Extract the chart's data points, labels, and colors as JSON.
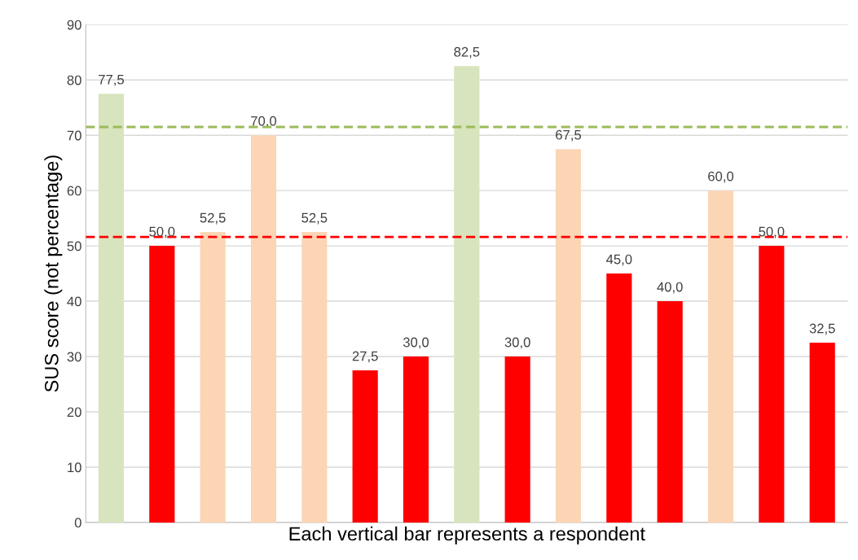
{
  "chart_data": {
    "type": "bar",
    "xlabel": "Each vertical bar represents a respondent",
    "ylabel": "SUS score (not percentage)",
    "categories": [
      null,
      null,
      null,
      null,
      null,
      null,
      null,
      null,
      null,
      null,
      null,
      null,
      null,
      null,
      null
    ],
    "values": [
      77.5,
      50,
      52.5,
      70,
      52.5,
      27.5,
      30,
      82.5,
      30,
      67.5,
      45,
      40,
      60,
      50,
      32.5
    ],
    "colors": [
      "#d7e4bd",
      "#ff0000",
      "#fcd5b5",
      "#fcd5b5",
      "#fcd5b5",
      "#ff0000",
      "#ff0000",
      "#d7e4bd",
      "#ff0000",
      "#fcd5b5",
      "#ff0000",
      "#ff0000",
      "#fcd5b5",
      "#ff0000",
      "#ff0000"
    ],
    "value_labels": [
      "77,5",
      "50,0",
      "52,5",
      "70,0",
      "52,5",
      "27,5",
      "30,0",
      "82,5",
      "30,0",
      "67,5",
      "45,0",
      "40,0",
      "60,0",
      "50,0",
      "32,5"
    ],
    "ylim": [
      0,
      90
    ],
    "yticks": [
      0,
      10,
      20,
      30,
      40,
      50,
      60,
      70,
      80,
      90
    ],
    "grid": "y",
    "ref_lines": [
      {
        "axis": "y",
        "value": 71.5,
        "color": "#9bbb59",
        "line_style": "dashed"
      },
      {
        "axis": "y",
        "value": 51.6,
        "color": "#ff0000",
        "line_style": "dashed"
      }
    ]
  }
}
